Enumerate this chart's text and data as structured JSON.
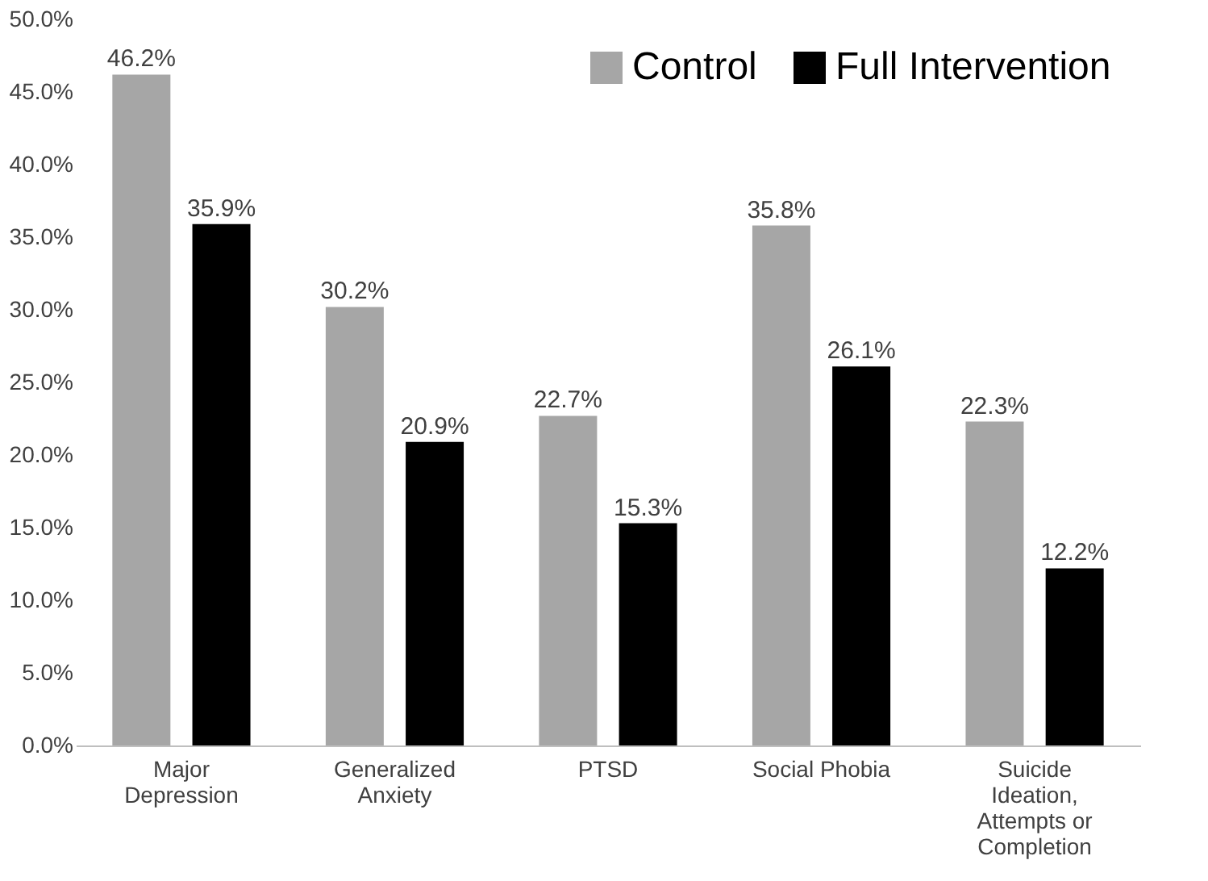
{
  "chart_data": {
    "type": "bar",
    "categories": [
      "Major Depression",
      "Generalized Anxiety",
      "PTSD",
      "Social Phobia",
      "Suicide Ideation, Attempts or Completion"
    ],
    "series": [
      {
        "name": "Control",
        "color": "#a6a6a6",
        "values": [
          46.2,
          30.2,
          22.7,
          35.8,
          22.3
        ],
        "value_labels": [
          "46.2%",
          "30.2%",
          "22.7%",
          "35.8%",
          "22.3%"
        ]
      },
      {
        "name": "Full Intervention",
        "color": "#000000",
        "values": [
          35.9,
          20.9,
          15.3,
          26.1,
          12.2
        ],
        "value_labels": [
          "35.9%",
          "20.9%",
          "15.3%",
          "26.1%",
          "12.2%"
        ]
      }
    ],
    "ylim": [
      0,
      50
    ],
    "yticks": [
      {
        "value": 0,
        "label": "0.0%"
      },
      {
        "value": 5,
        "label": "5.0%"
      },
      {
        "value": 10,
        "label": "10.0%"
      },
      {
        "value": 15,
        "label": "15.0%"
      },
      {
        "value": 20,
        "label": "20.0%"
      },
      {
        "value": 25,
        "label": "25.0%"
      },
      {
        "value": 30,
        "label": "30.0%"
      },
      {
        "value": 35,
        "label": "35.0%"
      },
      {
        "value": 40,
        "label": "40.0%"
      },
      {
        "value": 45,
        "label": "45.0%"
      },
      {
        "value": 50,
        "label": "50.0%"
      }
    ],
    "grid": false,
    "legend": "top right"
  }
}
